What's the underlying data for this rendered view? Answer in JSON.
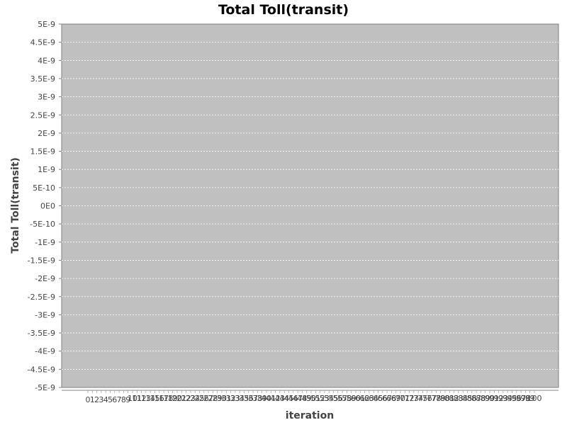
{
  "chart_data": {
    "type": "bar",
    "title": "Total Toll(transit)",
    "xlabel": "iteration",
    "ylabel": "Total Toll(transit)",
    "ylim": [
      -5e-09,
      5e-09
    ],
    "yticks": [
      "5E-9",
      "4.5E-9",
      "4E-9",
      "3.5E-9",
      "3E-9",
      "2.5E-9",
      "2E-9",
      "1.5E-9",
      "1E-9",
      "5E-10",
      "0E0",
      "-5E-10",
      "-1E-9",
      "-1.5E-9",
      "-2E-9",
      "-2.5E-9",
      "-3E-9",
      "-3.5E-9",
      "-4E-9",
      "-4.5E-9",
      "-5E-9"
    ],
    "categories": [
      "0",
      "1",
      "2",
      "3",
      "4",
      "5",
      "6",
      "7",
      "8",
      "9",
      "10",
      "11",
      "12",
      "13",
      "14",
      "15",
      "16",
      "17",
      "18",
      "19",
      "20",
      "21",
      "22",
      "23",
      "24",
      "25",
      "26",
      "27",
      "28",
      "29",
      "30",
      "31",
      "32",
      "33",
      "34",
      "35",
      "36",
      "37",
      "38",
      "39",
      "40",
      "41",
      "42",
      "43",
      "44",
      "45",
      "46",
      "47",
      "48",
      "49",
      "50",
      "51",
      "52",
      "53",
      "54",
      "55",
      "56",
      "57",
      "58",
      "59",
      "60",
      "61",
      "62",
      "63",
      "64",
      "65",
      "66",
      "67",
      "68",
      "69",
      "70",
      "71",
      "72",
      "73",
      "74",
      "75",
      "76",
      "77",
      "78",
      "79",
      "80",
      "81",
      "82",
      "83",
      "84",
      "85",
      "86",
      "87",
      "88",
      "89",
      "90",
      "91",
      "92",
      "93",
      "94",
      "95",
      "96",
      "97",
      "98",
      "99",
      "100"
    ],
    "values": [
      0,
      0,
      0,
      0,
      0,
      0,
      0,
      0,
      0,
      0,
      0,
      0,
      0,
      0,
      0,
      0,
      0,
      0,
      0,
      0,
      0,
      0,
      0,
      0,
      0,
      0,
      0,
      0,
      0,
      0,
      0,
      0,
      0,
      0,
      0,
      0,
      0,
      0,
      0,
      0,
      0,
      0,
      0,
      0,
      0,
      0,
      0,
      0,
      0,
      0,
      0,
      0,
      0,
      0,
      0,
      0,
      0,
      0,
      0,
      0,
      0,
      0,
      0,
      0,
      0,
      0,
      0,
      0,
      0,
      0,
      0,
      0,
      0,
      0,
      0,
      0,
      0,
      0,
      0,
      0,
      0,
      0,
      0,
      0,
      0,
      0,
      0,
      0,
      0,
      0,
      0,
      0,
      0,
      0,
      0,
      0,
      0,
      0,
      0,
      0,
      0
    ],
    "grid": true,
    "plot_background": "#c0c0c0",
    "grid_color": "#ffffff"
  }
}
